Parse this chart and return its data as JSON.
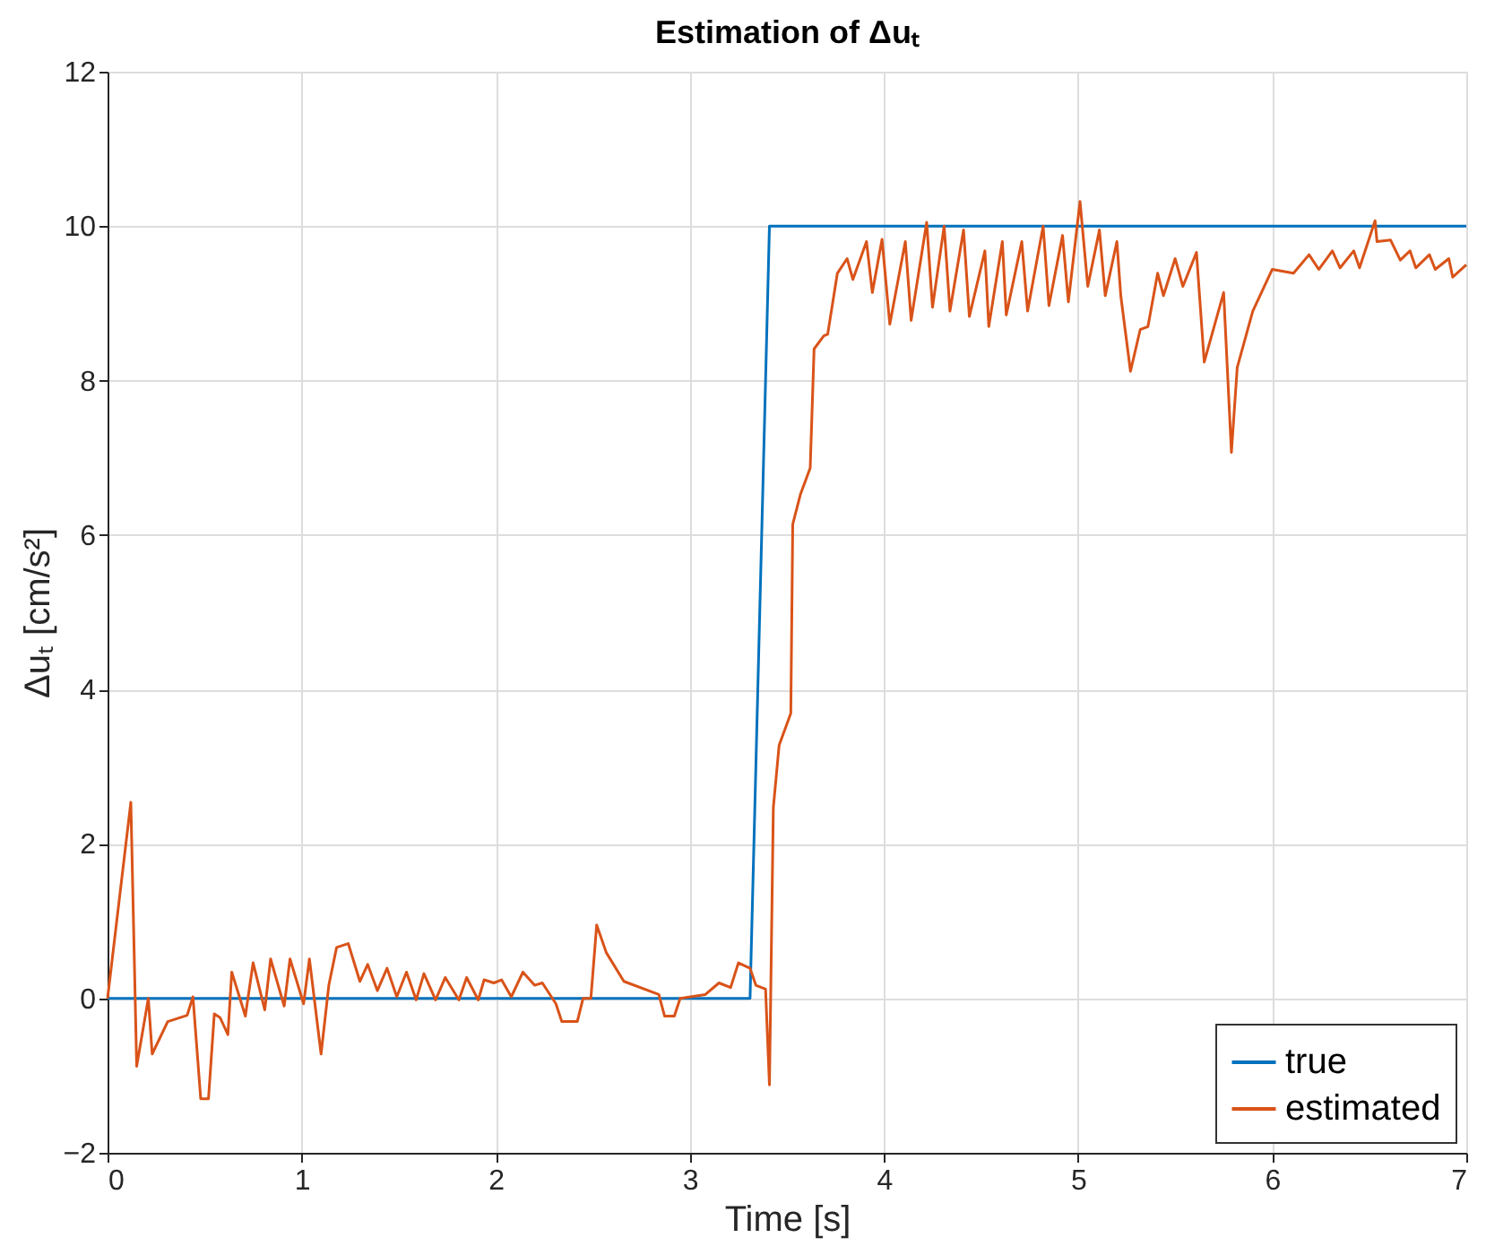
{
  "chart_data": {
    "type": "line",
    "title": "Estimation of Δuₜ",
    "xlabel": "Time [s]",
    "ylabel": "Δuₜ [cm/s²]",
    "xlim": [
      0,
      7
    ],
    "xticks": [
      0,
      1,
      2,
      3,
      4,
      5,
      6,
      7
    ],
    "ylim": [
      -2,
      12
    ],
    "yticks": [
      -2,
      0,
      2,
      4,
      6,
      8,
      10,
      12
    ],
    "grid": true,
    "legend": "bottom right",
    "line_style": "solid",
    "marker": "none",
    "series": [
      {
        "name": "true",
        "color": "#0072bd",
        "x": [
          0,
          3.31,
          3.41,
          7
        ],
        "values": [
          0,
          0,
          10,
          10
        ]
      },
      {
        "name": "estimated",
        "color": "#d95319",
        "x": [
          0,
          0.12,
          0.15,
          0.21,
          0.23,
          0.31,
          0.41,
          0.44,
          0.48,
          0.52,
          0.55,
          0.58,
          0.62,
          0.64,
          0.71,
          0.75,
          0.81,
          0.84,
          0.91,
          0.94,
          1.01,
          1.04,
          1.1,
          1.14,
          1.18,
          1.24,
          1.3,
          1.34,
          1.39,
          1.44,
          1.49,
          1.54,
          1.59,
          1.63,
          1.69,
          1.74,
          1.81,
          1.85,
          1.91,
          1.94,
          1.99,
          2.03,
          2.08,
          2.14,
          2.2,
          2.24,
          2.31,
          2.34,
          2.42,
          2.45,
          2.49,
          2.52,
          2.57,
          2.66,
          2.84,
          2.87,
          2.92,
          2.95,
          3.08,
          3.15,
          3.21,
          3.25,
          3.31,
          3.34,
          3.39,
          3.41,
          3.43,
          3.46,
          3.52,
          3.53,
          3.57,
          3.62,
          3.64,
          3.69,
          3.71,
          3.76,
          3.81,
          3.84,
          3.91,
          3.94,
          3.99,
          4.03,
          4.11,
          4.14,
          4.22,
          4.25,
          4.31,
          4.34,
          4.41,
          4.44,
          4.52,
          4.54,
          4.61,
          4.63,
          4.71,
          4.74,
          4.82,
          4.85,
          4.92,
          4.95,
          5.01,
          5.05,
          5.11,
          5.14,
          5.2,
          5.22,
          5.27,
          5.32,
          5.36,
          5.41,
          5.44,
          5.5,
          5.54,
          5.61,
          5.65,
          5.75,
          5.79,
          5.82,
          5.9,
          6.0,
          6.11,
          6.19,
          6.24,
          6.31,
          6.35,
          6.42,
          6.45,
          6.53,
          6.54,
          6.61,
          6.66,
          6.71,
          6.74,
          6.81,
          6.84,
          6.91,
          6.93,
          7.0
        ],
        "values": [
          0,
          2.54,
          -0.88,
          0,
          -0.72,
          -0.3,
          -0.22,
          0.02,
          -1.3,
          -1.3,
          -0.2,
          -0.25,
          -0.47,
          0.34,
          -0.23,
          0.46,
          -0.15,
          0.51,
          -0.1,
          0.51,
          -0.07,
          0.51,
          -0.72,
          0.17,
          0.66,
          0.71,
          0.22,
          0.44,
          0.1,
          0.39,
          0.02,
          0.34,
          -0.02,
          0.32,
          -0.02,
          0.27,
          -0.02,
          0.27,
          -0.02,
          0.24,
          0.2,
          0.24,
          0.02,
          0.34,
          0.17,
          0.2,
          -0.07,
          -0.3,
          -0.3,
          0,
          0,
          0.95,
          0.59,
          0.22,
          0.05,
          -0.23,
          -0.23,
          0,
          0.05,
          0.2,
          0.14,
          0.46,
          0.39,
          0.17,
          0.12,
          -1.12,
          2.47,
          3.28,
          3.69,
          6.14,
          6.53,
          6.87,
          8.41,
          8.58,
          8.6,
          9.39,
          9.58,
          9.31,
          9.8,
          9.14,
          9.83,
          8.73,
          9.8,
          8.78,
          10.05,
          8.95,
          10.0,
          8.9,
          9.95,
          8.83,
          9.68,
          8.7,
          9.8,
          8.85,
          9.8,
          8.9,
          10.0,
          8.97,
          9.88,
          9.02,
          10.32,
          9.22,
          9.95,
          9.1,
          9.8,
          9.1,
          8.12,
          8.66,
          8.7,
          9.39,
          9.1,
          9.58,
          9.22,
          9.66,
          8.24,
          9.14,
          7.07,
          8.17,
          8.9,
          9.44,
          9.39,
          9.63,
          9.44,
          9.68,
          9.46,
          9.68,
          9.46,
          10.07,
          9.8,
          9.82,
          9.56,
          9.68,
          9.46,
          9.63,
          9.44,
          9.58,
          9.34,
          9.5
        ]
      }
    ]
  }
}
